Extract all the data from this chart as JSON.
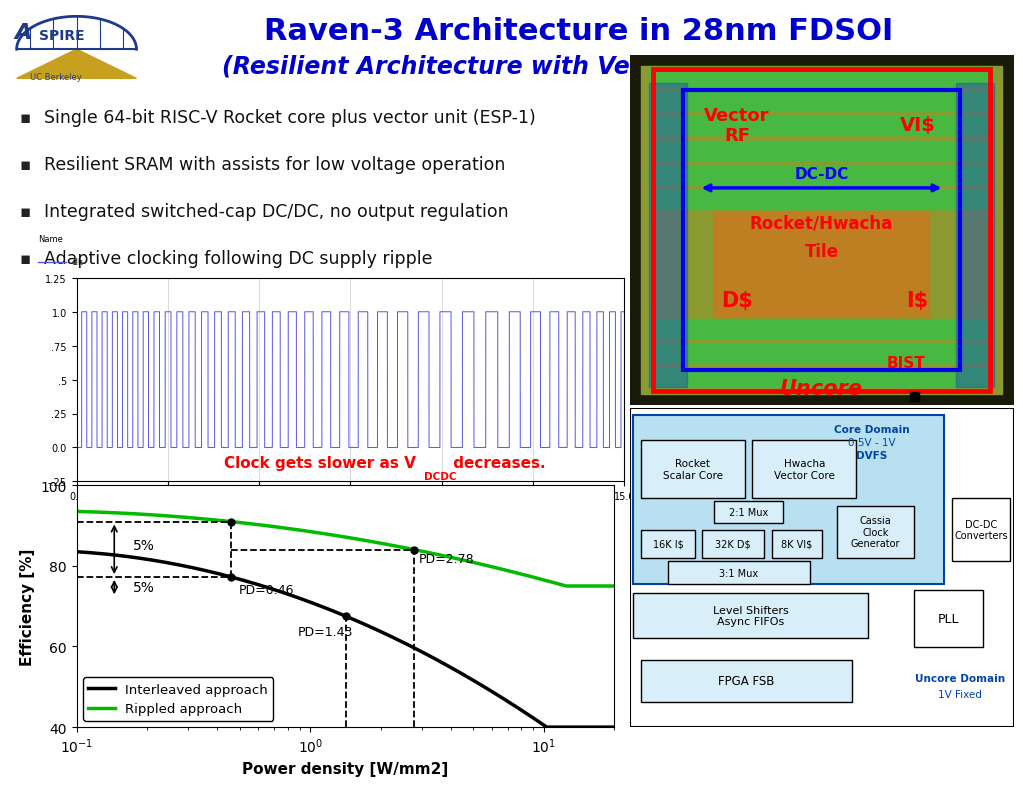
{
  "title_line1": "Raven-3 Architecture in 28nm FDSOI",
  "title_line2": "(Resilient Architecture with Vector-thread ExecutioN)",
  "title_color": "#0000CC",
  "title_fontsize": 22,
  "subtitle_fontsize": 17,
  "bullet_points": [
    "Single 64-bit RISC-V Rocket core plus vector unit (ESP-1)",
    "Resilient SRAM with assists for low voltage operation",
    "Integrated switched-cap DC/DC, no output regulation",
    "Adaptive clocking following DC supply ripple"
  ],
  "bullet_fontsize": 12.5,
  "clock_annot_color": "#FF0000",
  "efficiency_ylabel": "Efficiency [%]",
  "efficiency_xlabel": "Power density [W/mm2]",
  "interleaved_label": "Interleaved approach",
  "rippled_label": "Rippled approach",
  "interleaved_color": "#000000",
  "rippled_color": "#00BB00",
  "bg_color": "#FFFFFF",
  "aspire_color": "#1E3A8A",
  "aspire_gold": "#C8A020"
}
